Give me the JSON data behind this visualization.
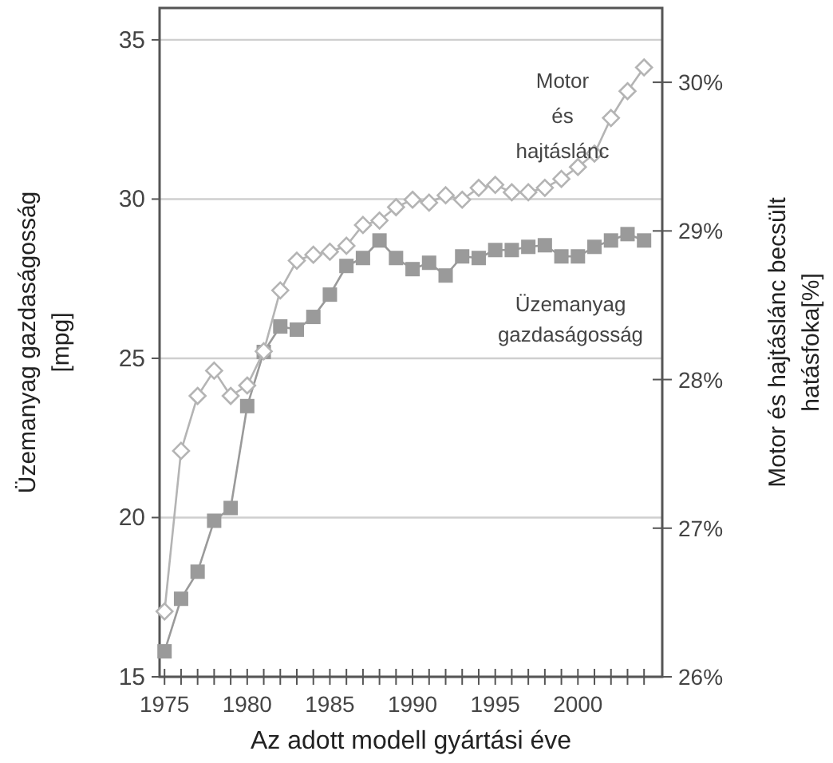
{
  "chart_data": {
    "type": "line",
    "xlabel": "Az adott modell gyártási éve",
    "ylabel": "Üzemanyag gazdaságosság [mpg]",
    "y2label": "Motor és hajtáslánc becsült hatásfoka[%]",
    "x": [
      1975,
      1976,
      1977,
      1978,
      1979,
      1980,
      1981,
      1982,
      1983,
      1984,
      1985,
      1986,
      1987,
      1988,
      1989,
      1990,
      1991,
      1992,
      1993,
      1994,
      1995,
      1996,
      1997,
      1998,
      1999,
      2000,
      2001,
      2002,
      2003,
      2004
    ],
    "series": [
      {
        "name": "Motor és hajtáslánc",
        "color": "#b4b4b4",
        "axis": "y2",
        "marker": "diamond",
        "values": [
          26.44,
          27.52,
          27.89,
          28.06,
          27.89,
          27.96,
          28.19,
          28.6,
          28.8,
          28.84,
          28.86,
          28.9,
          29.04,
          29.07,
          29.16,
          29.21,
          29.19,
          29.24,
          29.21,
          29.29,
          29.31,
          29.26,
          29.26,
          29.29,
          29.35,
          29.43,
          29.52,
          29.76,
          29.94,
          30.1
        ]
      },
      {
        "name": "Üzemanyag gazdaságosság",
        "color": "#9a9a9a",
        "marker": "square",
        "values": [
          15.8,
          17.45,
          18.3,
          19.9,
          20.3,
          23.5,
          25.2,
          26.0,
          25.9,
          26.3,
          27.0,
          27.9,
          28.15,
          28.7,
          28.15,
          27.8,
          28.0,
          27.6,
          28.2,
          28.15,
          28.4,
          28.4,
          28.5,
          28.55,
          28.2,
          28.2,
          28.5,
          28.7,
          28.9,
          28.7
        ]
      }
    ],
    "xlim": [
      1974.7,
      2005.1
    ],
    "xticks": [
      1975,
      {
        "value": 1976,
        "label": null
      },
      {
        "value": 1977,
        "label": null
      },
      {
        "value": 1978,
        "label": null
      },
      {
        "value": 1979,
        "label": null
      },
      1980,
      {
        "value": 1981,
        "label": null
      },
      {
        "value": 1982,
        "label": null
      },
      {
        "value": 1983,
        "label": null
      },
      {
        "value": 1984,
        "label": null
      },
      1985,
      {
        "value": 1986,
        "label": null
      },
      {
        "value": 1987,
        "label": null
      },
      {
        "value": 1988,
        "label": null
      },
      {
        "value": 1989,
        "label": null
      },
      1990,
      {
        "value": 1991,
        "label": null
      },
      {
        "value": 1992,
        "label": null
      },
      {
        "value": 1993,
        "label": null
      },
      {
        "value": 1994,
        "label": null
      },
      1995,
      {
        "value": 1996,
        "label": null
      },
      {
        "value": 1997,
        "label": null
      },
      {
        "value": 1998,
        "label": null
      },
      {
        "value": 1999,
        "label": null
      },
      2000,
      {
        "value": 2001,
        "label": null
      },
      {
        "value": 2002,
        "label": null
      },
      {
        "value": 2003,
        "label": null
      },
      {
        "value": 2004,
        "label": null
      }
    ],
    "ylim": [
      15,
      36
    ],
    "yticks": [
      15,
      20,
      25,
      30,
      35
    ],
    "y2lim": [
      26,
      30.5
    ],
    "y2ticks": [
      {
        "value": 26,
        "label": "26%"
      },
      {
        "value": 27,
        "label": "27%"
      },
      {
        "value": 28,
        "label": "28%"
      },
      {
        "value": 29,
        "label": "29%"
      },
      {
        "value": 30,
        "label": "30%"
      }
    ],
    "grid": "y"
  }
}
